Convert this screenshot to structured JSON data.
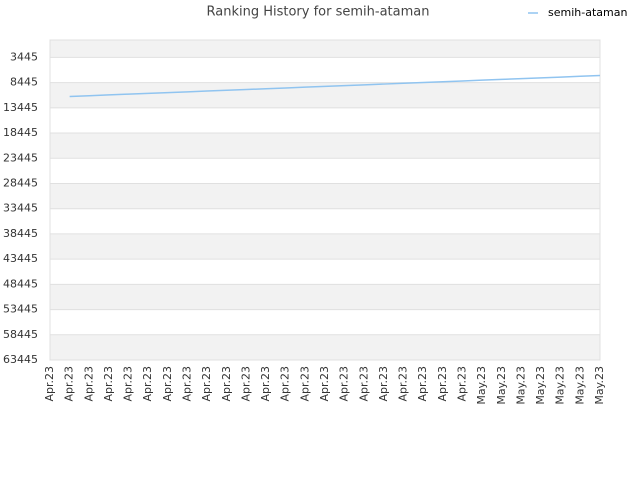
{
  "chart_data": {
    "type": "line",
    "title": "Ranking History for semih-ataman",
    "categories": [
      "Apr.23",
      "Apr.23",
      "Apr.23",
      "Apr.23",
      "Apr.23",
      "Apr.23",
      "Apr.23",
      "Apr.23",
      "Apr.23",
      "Apr.23",
      "Apr.23",
      "Apr.23",
      "Apr.23",
      "Apr.23",
      "Apr.23",
      "Apr.23",
      "Apr.23",
      "Apr.23",
      "Apr.23",
      "Apr.23",
      "Apr.23",
      "Apr.23",
      "May.23",
      "May.23",
      "May.23",
      "May.23",
      "May.23",
      "May.23",
      "May.23"
    ],
    "series": [
      {
        "name": "semih-ataman",
        "color": "#90c4f0",
        "values": [
          null,
          11200,
          11046,
          10892,
          10738,
          10584,
          10430,
          10276,
          10122,
          9968,
          9814,
          9660,
          9506,
          9352,
          9198,
          9044,
          8890,
          8736,
          8582,
          8428,
          8274,
          8120,
          7966,
          7812,
          7658,
          7504,
          7350,
          7196,
          7042
        ]
      }
    ],
    "ylim": [
      63445,
      0
    ],
    "yticks": [
      3445,
      8445,
      13445,
      18445,
      23445,
      28445,
      33445,
      38445,
      43445,
      48445,
      53445,
      58445,
      63445
    ],
    "grid": true,
    "legend": "top-right"
  }
}
